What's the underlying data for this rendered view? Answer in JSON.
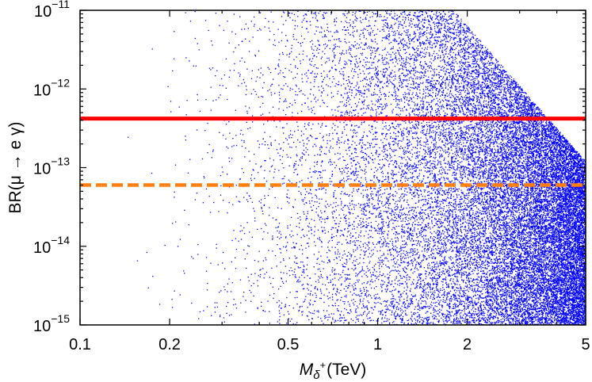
{
  "chart_data": {
    "type": "scatter",
    "title": "",
    "x_scale": "log",
    "y_scale": "log",
    "xlim": [
      0.1,
      5
    ],
    "ylim": [
      1e-15,
      1e-11
    ],
    "xlabel": {
      "symbol": "M",
      "subscript": "δ",
      "superscript": "+",
      "unit": "(TeV)"
    },
    "ylabel": "BR(μ → e γ)",
    "x_ticks": [
      {
        "value": 0.1,
        "label": "0.1"
      },
      {
        "value": 0.2,
        "label": "0.2"
      },
      {
        "value": 0.5,
        "label": "0.5"
      },
      {
        "value": 1,
        "label": "1"
      },
      {
        "value": 2,
        "label": "2"
      },
      {
        "value": 5,
        "label": "5"
      }
    ],
    "y_ticks": [
      {
        "value": 1e-15,
        "mantissa": "10",
        "exponent": "−15"
      },
      {
        "value": 1e-14,
        "mantissa": "10",
        "exponent": "−14"
      },
      {
        "value": 1e-13,
        "mantissa": "10",
        "exponent": "−13"
      },
      {
        "value": 1e-12,
        "mantissa": "10",
        "exponent": "−12"
      },
      {
        "value": 1e-11,
        "mantissa": "10",
        "exponent": "−11"
      }
    ],
    "grid": false,
    "series": [
      {
        "kind": "scatter",
        "color": "#0000ff",
        "x_range": [
          0.1,
          5
        ],
        "upper_envelope": [
          [
            0.1,
            1e-11
          ],
          [
            1.8,
            1e-11
          ],
          [
            5,
            1.2e-13
          ]
        ],
        "lower_bound": 1e-15
      }
    ],
    "reference_lines": [
      {
        "y": 4.2e-13,
        "style": "solid",
        "color": "#ff0000"
      },
      {
        "y": 6e-14,
        "style": "dashed",
        "color": "#ff7f0e"
      }
    ]
  }
}
